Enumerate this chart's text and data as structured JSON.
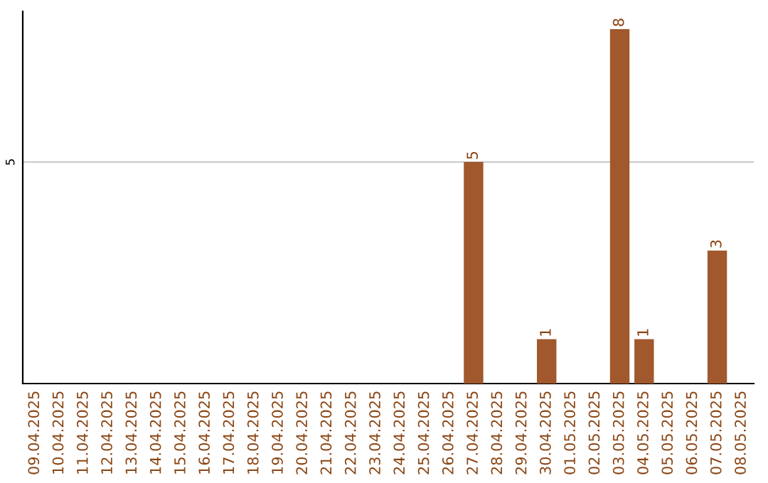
{
  "chart_data": {
    "type": "bar",
    "categories": [
      "09.04.2025",
      "10.04.2025",
      "11.04.2025",
      "12.04.2025",
      "13.04.2025",
      "14.04.2025",
      "15.04.2025",
      "16.04.2025",
      "17.04.2025",
      "18.04.2025",
      "19.04.2025",
      "20.04.2025",
      "21.04.2025",
      "22.04.2025",
      "23.04.2025",
      "24.04.2025",
      "25.04.2025",
      "26.04.2025",
      "27.04.2025",
      "28.04.2025",
      "29.04.2025",
      "30.04.2025",
      "01.05.2025",
      "02.05.2025",
      "03.05.2025",
      "04.05.2025",
      "05.05.2025",
      "06.05.2025",
      "07.05.2025",
      "08.05.2025"
    ],
    "values": [
      null,
      null,
      null,
      null,
      null,
      null,
      null,
      null,
      null,
      null,
      null,
      null,
      null,
      null,
      null,
      null,
      null,
      null,
      5,
      null,
      null,
      1,
      null,
      null,
      8,
      1,
      null,
      null,
      3,
      null
    ],
    "value_labels": [
      null,
      null,
      null,
      null,
      null,
      null,
      null,
      null,
      null,
      null,
      null,
      null,
      null,
      null,
      null,
      null,
      null,
      null,
      "5",
      null,
      null,
      "1",
      null,
      null,
      "8",
      "1",
      null,
      null,
      "3",
      null
    ],
    "color": "#a0582c",
    "ylim": [
      0,
      8.4
    ],
    "yticks": [
      {
        "value": 0,
        "label": null
      },
      5
    ],
    "grid": "y",
    "legend": false
  }
}
